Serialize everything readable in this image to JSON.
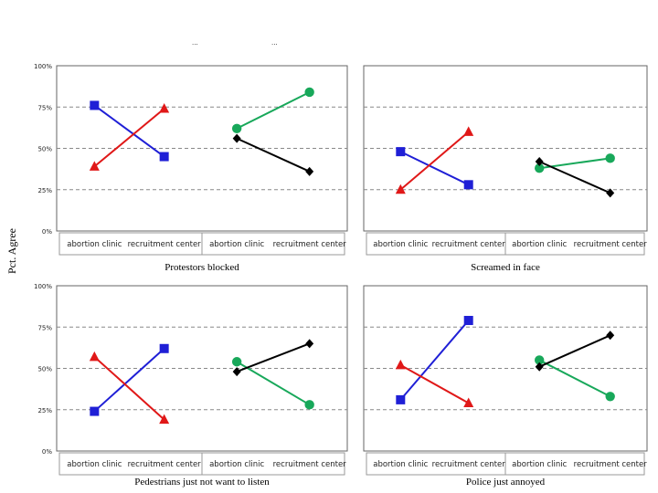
{
  "figure": {
    "ylabel": "Pct. Agree",
    "header_fragments": [
      "...",
      "..."
    ]
  },
  "colors": {
    "blue": "#1f1fd6",
    "red": "#e01818",
    "green": "#18a85a",
    "black": "#000000",
    "grid": "#888888",
    "plot_bg": "#ffffff"
  },
  "chart_data": [
    {
      "type": "line",
      "title": "Protestors blocked",
      "categories": [
        "abortion clinic",
        "recruitment center",
        "abortion clinic",
        "recruitment center"
      ],
      "yticks": [
        "0%",
        "25%",
        "50%",
        "75%",
        "100%"
      ],
      "ylim": [
        0,
        100
      ],
      "series": [
        {
          "color": "blue",
          "marker": "square",
          "x": [
            0,
            1
          ],
          "values": [
            76,
            45
          ]
        },
        {
          "color": "red",
          "marker": "triangle",
          "x": [
            0,
            1
          ],
          "values": [
            39,
            74
          ]
        },
        {
          "color": "green",
          "marker": "circle",
          "x": [
            2,
            3
          ],
          "values": [
            62,
            84
          ]
        },
        {
          "color": "black",
          "marker": "diamond",
          "x": [
            2,
            3
          ],
          "values": [
            56,
            36
          ]
        }
      ]
    },
    {
      "type": "line",
      "title": "Screamed in face",
      "categories": [
        "abortion clinic",
        "recruitment center",
        "abortion clinic",
        "recruitment center"
      ],
      "yticks": [],
      "ylim": [
        0,
        100
      ],
      "series": [
        {
          "color": "blue",
          "marker": "square",
          "x": [
            0,
            1
          ],
          "values": [
            48,
            28
          ]
        },
        {
          "color": "red",
          "marker": "triangle",
          "x": [
            0,
            1
          ],
          "values": [
            25,
            60
          ]
        },
        {
          "color": "green",
          "marker": "circle",
          "x": [
            2,
            3
          ],
          "values": [
            38,
            44
          ]
        },
        {
          "color": "black",
          "marker": "diamond",
          "x": [
            2,
            3
          ],
          "values": [
            42,
            23
          ]
        }
      ]
    },
    {
      "type": "line",
      "title": "Pedestrians just not want to listen",
      "categories": [
        "abortion clinic",
        "recruitment center",
        "abortion clinic",
        "recruitment center"
      ],
      "yticks": [
        "0%",
        "25%",
        "50%",
        "75%",
        "100%"
      ],
      "ylim": [
        0,
        100
      ],
      "series": [
        {
          "color": "blue",
          "marker": "square",
          "x": [
            0,
            1
          ],
          "values": [
            24,
            62
          ]
        },
        {
          "color": "red",
          "marker": "triangle",
          "x": [
            0,
            1
          ],
          "values": [
            57,
            19
          ]
        },
        {
          "color": "green",
          "marker": "circle",
          "x": [
            2,
            3
          ],
          "values": [
            54,
            28
          ]
        },
        {
          "color": "black",
          "marker": "diamond",
          "x": [
            2,
            3
          ],
          "values": [
            48,
            65
          ]
        }
      ]
    },
    {
      "type": "line",
      "title": "Police just annoyed",
      "categories": [
        "abortion clinic",
        "recruitment center",
        "abortion clinic",
        "recruitment center"
      ],
      "yticks": [],
      "ylim": [
        0,
        100
      ],
      "series": [
        {
          "color": "blue",
          "marker": "square",
          "x": [
            0,
            1
          ],
          "values": [
            31,
            79
          ]
        },
        {
          "color": "red",
          "marker": "triangle",
          "x": [
            0,
            1
          ],
          "values": [
            52,
            29
          ]
        },
        {
          "color": "green",
          "marker": "circle",
          "x": [
            2,
            3
          ],
          "values": [
            55,
            33
          ]
        },
        {
          "color": "black",
          "marker": "diamond",
          "x": [
            2,
            3
          ],
          "values": [
            51,
            70
          ]
        }
      ]
    }
  ]
}
